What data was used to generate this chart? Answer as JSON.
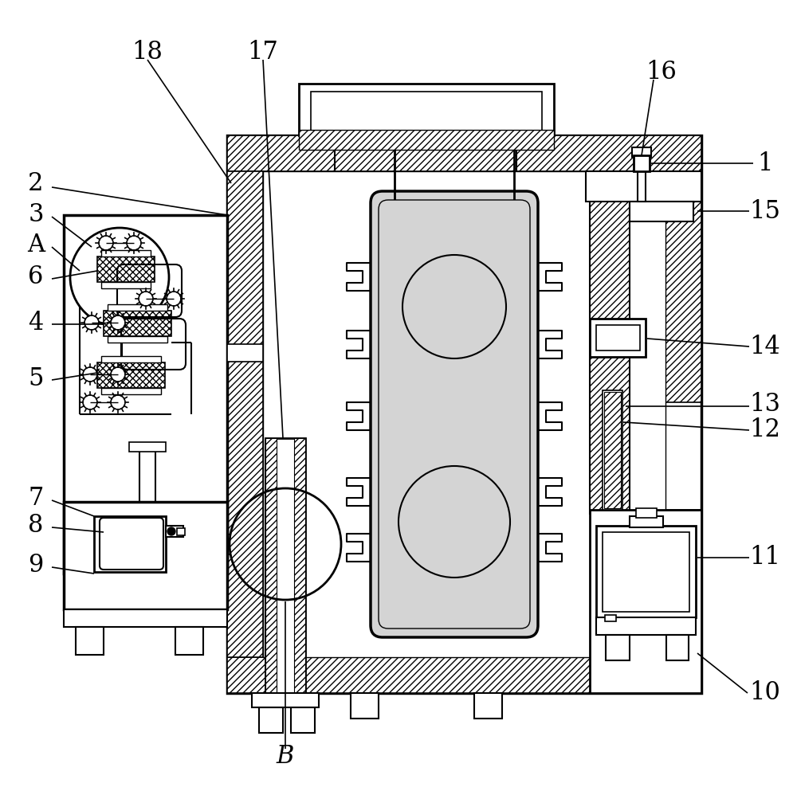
{
  "bg_color": "#ffffff",
  "figsize": [
    10.0,
    9.98
  ],
  "dpi": 100
}
